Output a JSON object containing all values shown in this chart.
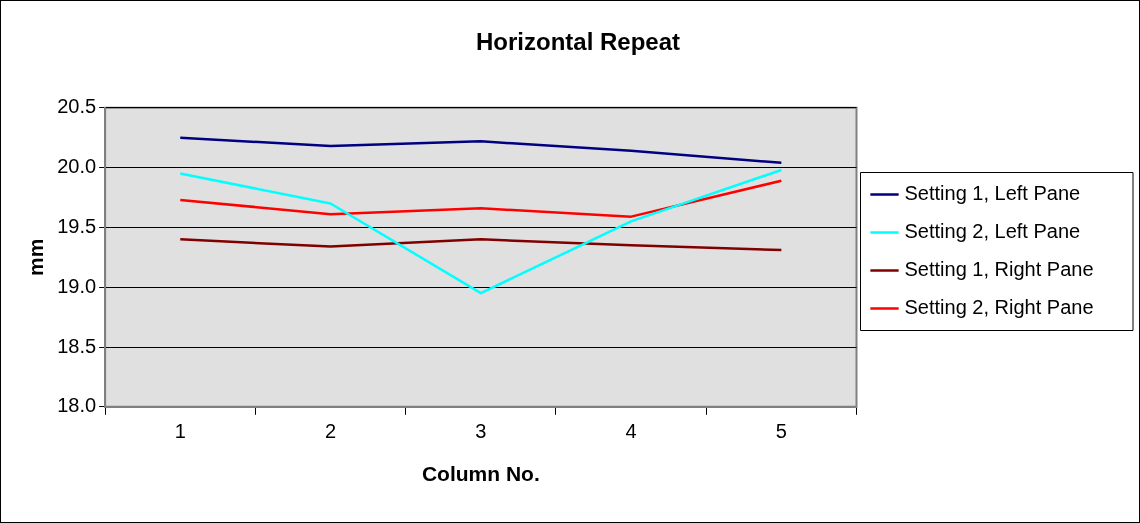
{
  "chart_data": {
    "type": "line",
    "title": "Horizontal Repeat",
    "xlabel": "Column No.",
    "ylabel": "mm",
    "categories": [
      "1",
      "2",
      "3",
      "4",
      "5"
    ],
    "series": [
      {
        "name": "Setting 1, Left Pane",
        "color": "#000080",
        "values": [
          20.25,
          20.18,
          20.22,
          20.14,
          20.04
        ]
      },
      {
        "name": "Setting 2, Left Pane",
        "color": "#00ffff",
        "values": [
          19.95,
          19.7,
          18.95,
          19.55,
          19.98
        ]
      },
      {
        "name": "Setting 1, Right Pane",
        "color": "#800000",
        "values": [
          19.4,
          19.34,
          19.4,
          19.35,
          19.31
        ]
      },
      {
        "name": "Setting 2, Right Pane",
        "color": "#ff0000",
        "values": [
          19.73,
          19.61,
          19.66,
          19.59,
          19.89
        ]
      }
    ],
    "ylim": [
      18.0,
      20.5
    ],
    "yticks": [
      {
        "value": 18.0,
        "label": "18.0"
      },
      {
        "value": 18.5,
        "label": "18.5"
      },
      {
        "value": 19.0,
        "label": "19.0"
      },
      {
        "value": 19.5,
        "label": "19.5"
      },
      {
        "value": 20.0,
        "label": "20.0"
      },
      {
        "value": 20.5,
        "label": "20.5"
      }
    ],
    "grid": "y",
    "legend": "right",
    "marker": "none",
    "line_style": "solid"
  }
}
